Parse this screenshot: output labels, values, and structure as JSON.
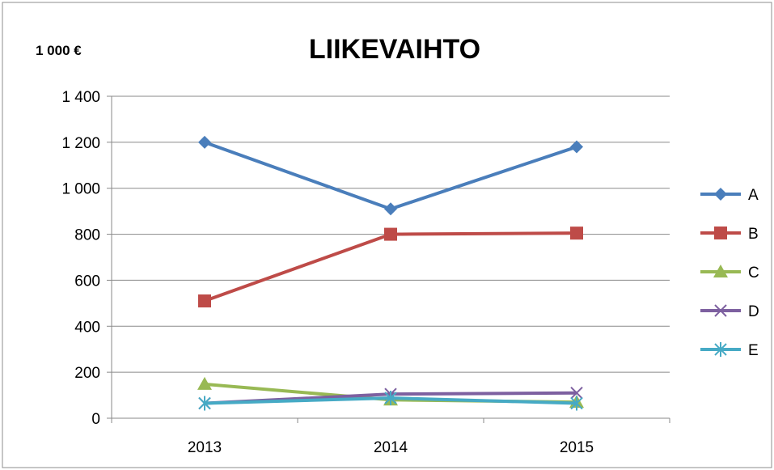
{
  "chart_data": {
    "type": "line",
    "title": "LIIKEVAIHTO",
    "unit_label": "1 000 €",
    "categories": [
      "2013",
      "2014",
      "2015"
    ],
    "ylim": [
      0,
      1400
    ],
    "yticks": [
      0,
      200,
      400,
      600,
      800,
      1000,
      1200,
      1400
    ],
    "ytick_labels": [
      "0",
      "200",
      "400",
      "600",
      "800",
      "1 000",
      "1 200",
      "1 400"
    ],
    "grid": true,
    "legend_position": "right",
    "series": [
      {
        "name": "A",
        "values": [
          1200,
          910,
          1180
        ],
        "color": "#4a7ebb",
        "marker": "diamond"
      },
      {
        "name": "B",
        "values": [
          510,
          800,
          805
        ],
        "color": "#be4b48",
        "marker": "square"
      },
      {
        "name": "C",
        "values": [
          148,
          80,
          70
        ],
        "color": "#98b954",
        "marker": "triangle"
      },
      {
        "name": "D",
        "values": [
          65,
          105,
          110
        ],
        "color": "#7d60a0",
        "marker": "x"
      },
      {
        "name": "E",
        "values": [
          65,
          88,
          65
        ],
        "color": "#46aac5",
        "marker": "star"
      }
    ]
  }
}
